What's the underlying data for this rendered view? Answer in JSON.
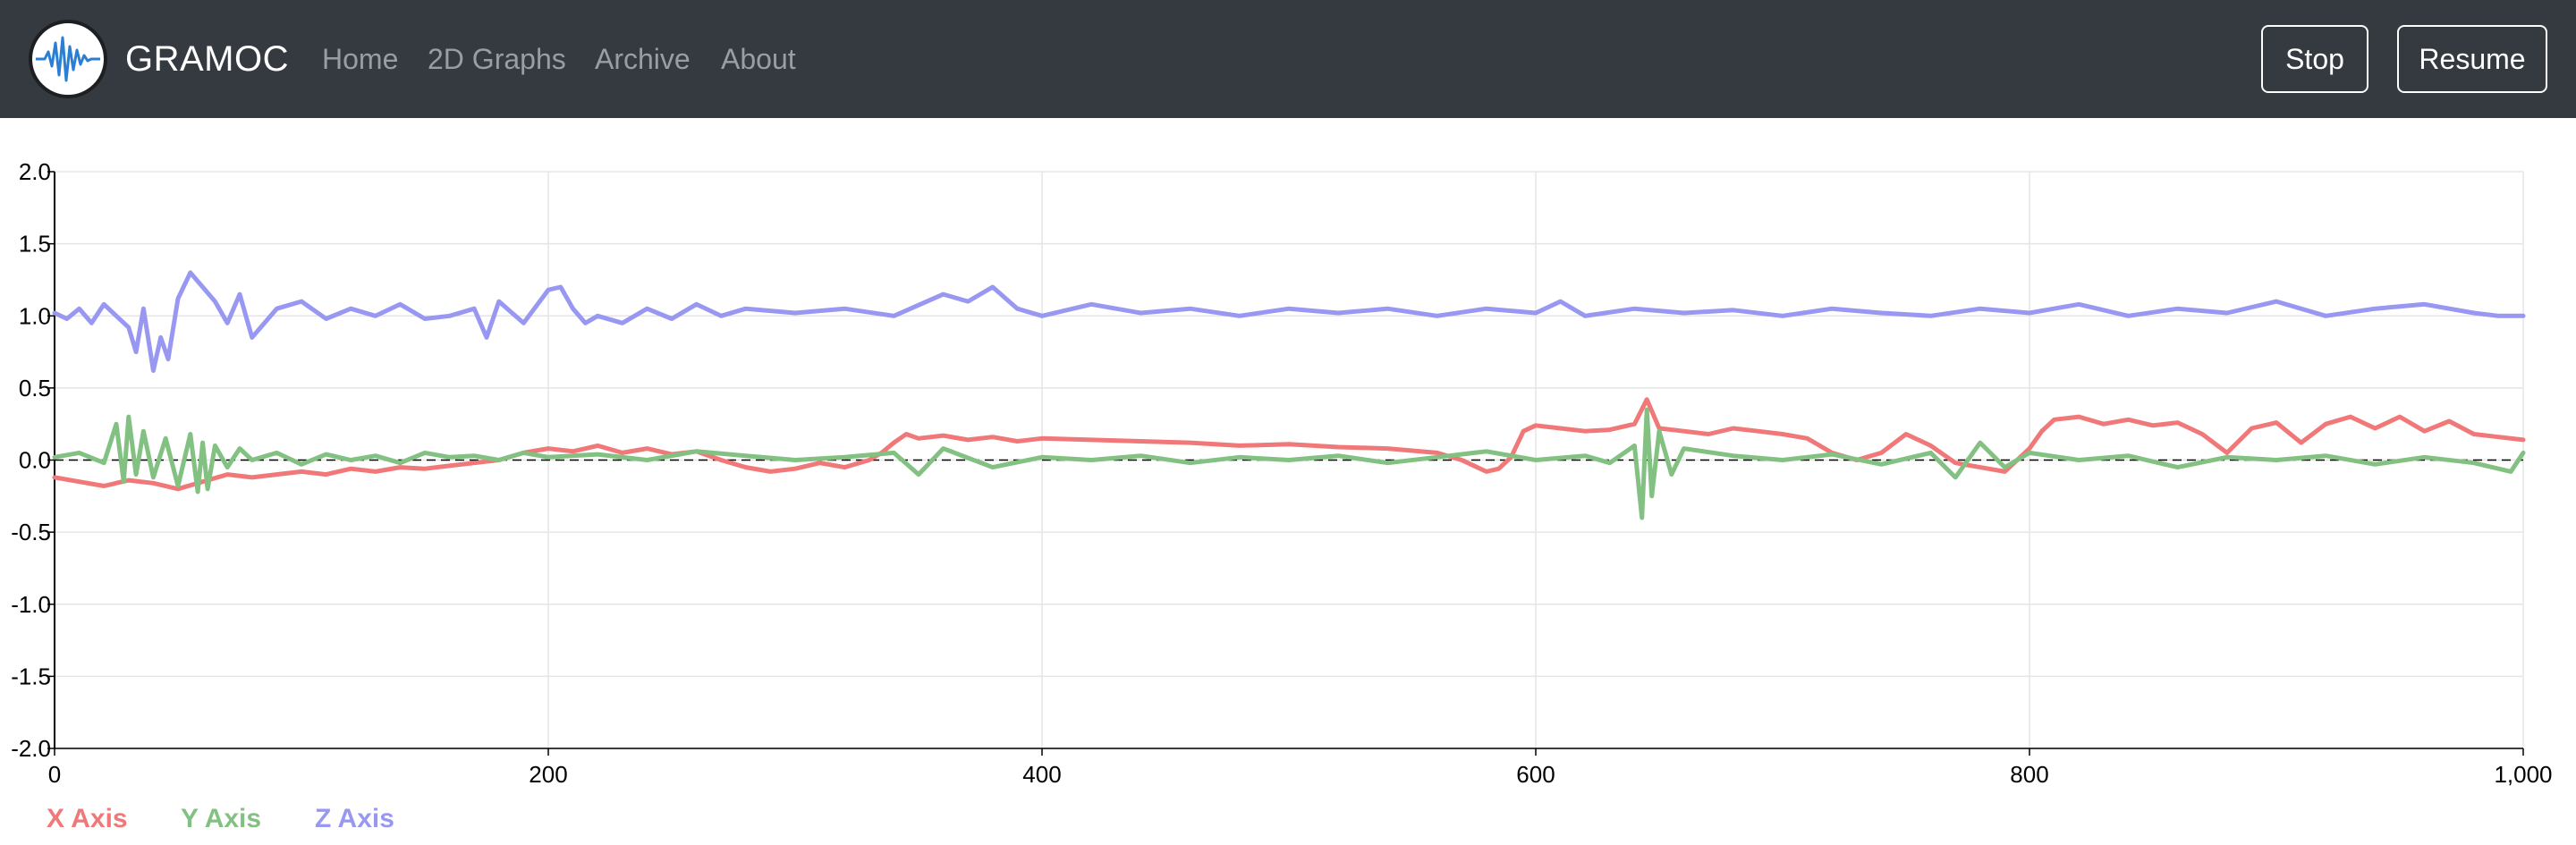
{
  "navbar": {
    "brand": "GRAMOC",
    "links": [
      "Home",
      "2D Graphs",
      "Archive",
      "About"
    ],
    "buttons": {
      "stop": "Stop",
      "resume": "Resume"
    }
  },
  "colors": {
    "navbar_bg": "#343a40",
    "x_axis": "#f07878",
    "y_axis": "#82c182",
    "z_axis": "#9898f2",
    "logo_wave": "#2a7fd4"
  },
  "icons": {
    "logo": "waveform-icon"
  },
  "chart_data": {
    "type": "line",
    "xlim": [
      0,
      1000
    ],
    "ylim": [
      -2.0,
      2.0
    ],
    "x_ticks": [
      "0",
      "200",
      "400",
      "600",
      "800",
      "1,000"
    ],
    "y_ticks": [
      "2.0",
      "1.5",
      "1.0",
      "0.5",
      "0.0",
      "-0.5",
      "-1.0",
      "-1.5",
      "-2.0"
    ],
    "grid": true,
    "legend_position": "bottom-left",
    "series": [
      {
        "name": "X Axis",
        "color": "#f07878",
        "x": [
          0,
          10,
          20,
          30,
          40,
          50,
          60,
          70,
          80,
          90,
          100,
          110,
          120,
          130,
          140,
          150,
          160,
          170,
          180,
          190,
          200,
          210,
          220,
          230,
          240,
          250,
          260,
          270,
          280,
          290,
          300,
          310,
          320,
          330,
          335,
          340,
          345,
          350,
          360,
          370,
          380,
          390,
          400,
          420,
          440,
          460,
          480,
          500,
          520,
          540,
          560,
          570,
          580,
          585,
          590,
          595,
          600,
          610,
          620,
          630,
          640,
          645,
          650,
          660,
          670,
          680,
          690,
          700,
          710,
          720,
          730,
          740,
          750,
          760,
          770,
          780,
          790,
          800,
          805,
          810,
          820,
          830,
          840,
          850,
          860,
          870,
          880,
          890,
          900,
          910,
          920,
          930,
          940,
          950,
          960,
          970,
          980,
          990,
          1000
        ],
        "y": [
          -0.12,
          -0.15,
          -0.18,
          -0.14,
          -0.16,
          -0.2,
          -0.15,
          -0.1,
          -0.12,
          -0.1,
          -0.08,
          -0.1,
          -0.06,
          -0.08,
          -0.05,
          -0.06,
          -0.04,
          -0.02,
          0.0,
          0.05,
          0.08,
          0.06,
          0.1,
          0.05,
          0.08,
          0.04,
          0.06,
          0.0,
          -0.05,
          -0.08,
          -0.06,
          -0.02,
          -0.05,
          0.0,
          0.05,
          0.12,
          0.18,
          0.15,
          0.17,
          0.14,
          0.16,
          0.13,
          0.15,
          0.14,
          0.13,
          0.12,
          0.1,
          0.11,
          0.09,
          0.08,
          0.05,
          0.0,
          -0.08,
          -0.06,
          0.02,
          0.2,
          0.24,
          0.22,
          0.2,
          0.21,
          0.25,
          0.42,
          0.22,
          0.2,
          0.18,
          0.22,
          0.2,
          0.18,
          0.15,
          0.05,
          0.0,
          0.05,
          0.18,
          0.1,
          -0.02,
          -0.05,
          -0.08,
          0.08,
          0.2,
          0.28,
          0.3,
          0.25,
          0.28,
          0.24,
          0.26,
          0.18,
          0.05,
          0.22,
          0.26,
          0.12,
          0.25,
          0.3,
          0.22,
          0.3,
          0.2,
          0.27,
          0.18,
          0.16,
          0.14
        ]
      },
      {
        "name": "Y Axis",
        "color": "#82c182",
        "x": [
          0,
          10,
          20,
          25,
          28,
          30,
          33,
          36,
          40,
          45,
          50,
          55,
          58,
          60,
          62,
          65,
          70,
          75,
          80,
          90,
          100,
          110,
          120,
          130,
          140,
          150,
          160,
          170,
          180,
          190,
          200,
          220,
          240,
          260,
          280,
          300,
          320,
          340,
          350,
          360,
          380,
          400,
          420,
          440,
          460,
          480,
          500,
          520,
          540,
          560,
          580,
          600,
          620,
          630,
          640,
          643,
          645,
          647,
          650,
          655,
          660,
          680,
          700,
          720,
          740,
          760,
          770,
          780,
          790,
          800,
          820,
          840,
          860,
          880,
          900,
          920,
          940,
          960,
          980,
          995,
          1000
        ],
        "y": [
          0.02,
          0.05,
          -0.02,
          0.25,
          -0.15,
          0.3,
          -0.1,
          0.2,
          -0.12,
          0.15,
          -0.18,
          0.18,
          -0.22,
          0.12,
          -0.2,
          0.1,
          -0.05,
          0.08,
          0.0,
          0.05,
          -0.03,
          0.04,
          0.0,
          0.03,
          -0.02,
          0.05,
          0.02,
          0.03,
          0.0,
          0.05,
          0.02,
          0.04,
          0.0,
          0.06,
          0.03,
          0.0,
          0.02,
          0.05,
          -0.1,
          0.08,
          -0.05,
          0.02,
          0.0,
          0.03,
          -0.02,
          0.02,
          0.0,
          0.03,
          -0.02,
          0.02,
          0.06,
          0.0,
          0.03,
          -0.02,
          0.1,
          -0.4,
          0.35,
          -0.25,
          0.2,
          -0.1,
          0.08,
          0.03,
          0.0,
          0.04,
          -0.03,
          0.05,
          -0.12,
          0.12,
          -0.05,
          0.05,
          0.0,
          0.03,
          -0.05,
          0.02,
          0.0,
          0.03,
          -0.03,
          0.02,
          -0.02,
          -0.08,
          0.05
        ]
      },
      {
        "name": "Z Axis",
        "color": "#9898f2",
        "x": [
          0,
          5,
          10,
          15,
          20,
          25,
          30,
          33,
          36,
          40,
          43,
          46,
          50,
          55,
          60,
          65,
          70,
          75,
          80,
          90,
          100,
          110,
          120,
          130,
          140,
          150,
          160,
          170,
          175,
          180,
          190,
          200,
          205,
          210,
          215,
          220,
          230,
          240,
          250,
          260,
          270,
          280,
          300,
          320,
          340,
          360,
          370,
          380,
          390,
          400,
          420,
          440,
          460,
          480,
          500,
          520,
          540,
          560,
          580,
          600,
          610,
          620,
          640,
          660,
          680,
          700,
          720,
          740,
          760,
          780,
          800,
          820,
          840,
          860,
          880,
          900,
          920,
          940,
          960,
          980,
          990,
          1000
        ],
        "y": [
          1.02,
          0.98,
          1.05,
          0.95,
          1.08,
          1.0,
          0.92,
          0.75,
          1.05,
          0.62,
          0.85,
          0.7,
          1.12,
          1.3,
          1.2,
          1.1,
          0.95,
          1.15,
          0.85,
          1.05,
          1.1,
          0.98,
          1.05,
          1.0,
          1.08,
          0.98,
          1.0,
          1.05,
          0.85,
          1.1,
          0.95,
          1.18,
          1.2,
          1.05,
          0.95,
          1.0,
          0.95,
          1.05,
          0.98,
          1.08,
          1.0,
          1.05,
          1.02,
          1.05,
          1.0,
          1.15,
          1.1,
          1.2,
          1.05,
          1.0,
          1.08,
          1.02,
          1.05,
          1.0,
          1.05,
          1.02,
          1.05,
          1.0,
          1.05,
          1.02,
          1.1,
          1.0,
          1.05,
          1.02,
          1.04,
          1.0,
          1.05,
          1.02,
          1.0,
          1.05,
          1.02,
          1.08,
          1.0,
          1.05,
          1.02,
          1.1,
          1.0,
          1.05,
          1.08,
          1.02,
          1.0,
          1.0
        ]
      }
    ]
  }
}
